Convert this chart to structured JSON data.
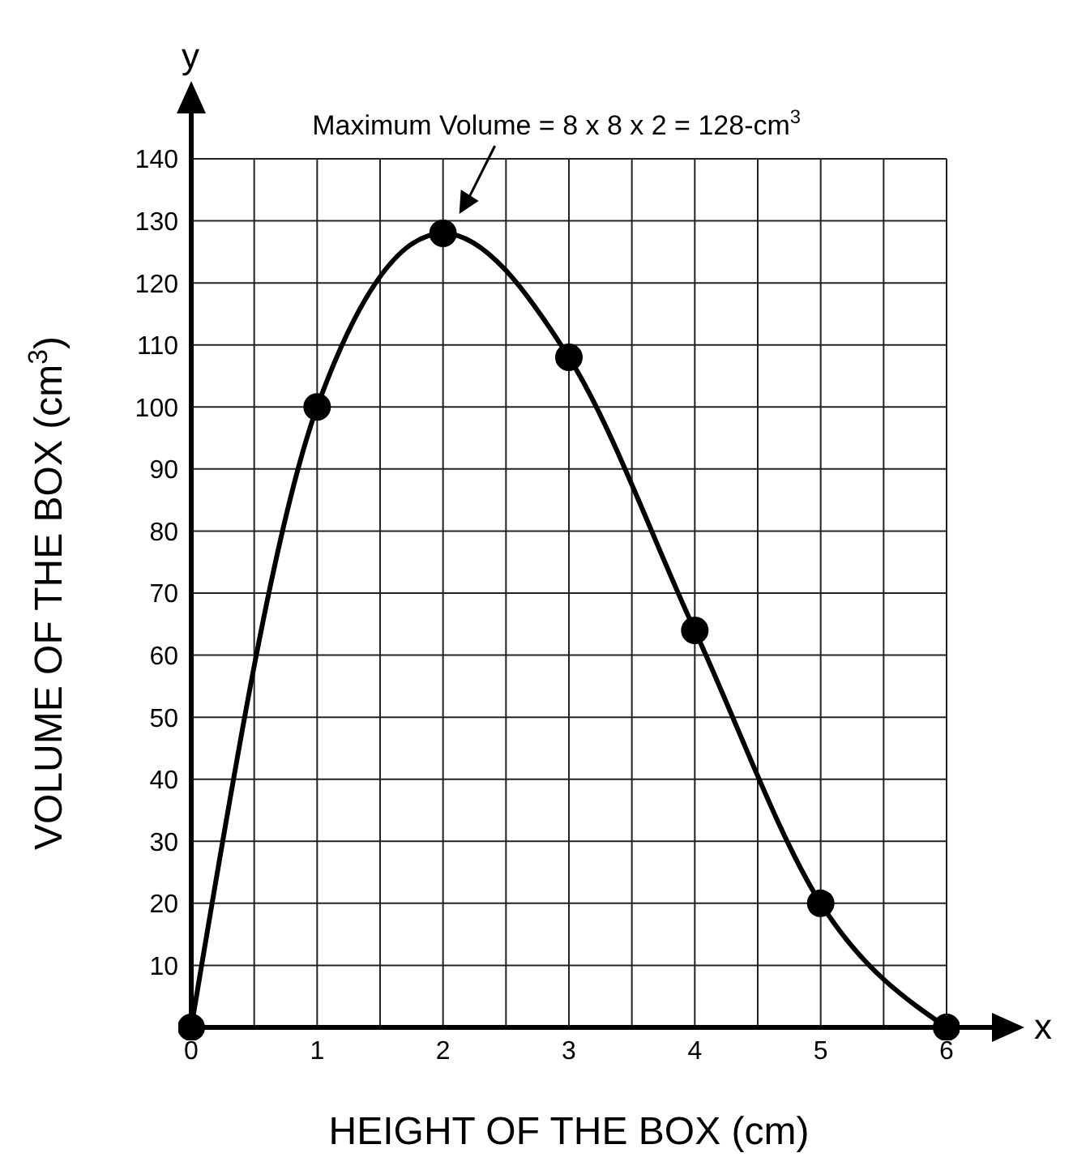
{
  "chart_data": {
    "type": "line",
    "xlabel": "HEIGHT OF THE BOX (cm)",
    "ylabel": "VOLUME OF THE BOX (cm$^{3}$)",
    "x": [
      0,
      1,
      2,
      3,
      4,
      5,
      6
    ],
    "series": [
      {
        "color": "#000000",
        "values": [
          0,
          100,
          128,
          108,
          64,
          20,
          0
        ]
      }
    ],
    "xlim": [
      0,
      6
    ],
    "ylim": [
      0,
      140
    ],
    "xticks": [
      0,
      {
        "value": 0.5,
        "label": null
      },
      1,
      {
        "value": 1.5,
        "label": null
      },
      2,
      {
        "value": 2.5,
        "label": null
      },
      3,
      {
        "value": 3.5,
        "label": null
      },
      4,
      {
        "value": 4.5,
        "label": null
      },
      5,
      {
        "value": 5.5,
        "label": null
      },
      6
    ],
    "yticks": [
      {
        "value": 0,
        "label": null
      },
      10,
      20,
      30,
      40,
      50,
      60,
      70,
      80,
      90,
      100,
      110,
      120,
      130,
      140
    ],
    "grid": true,
    "marker": "circle",
    "line_style": "solid",
    "legend": false,
    "annotations": [
      "Maximum Volume = 8 x 8 x 2 = 128-cm$^{3}$",
      "x",
      "y"
    ]
  }
}
